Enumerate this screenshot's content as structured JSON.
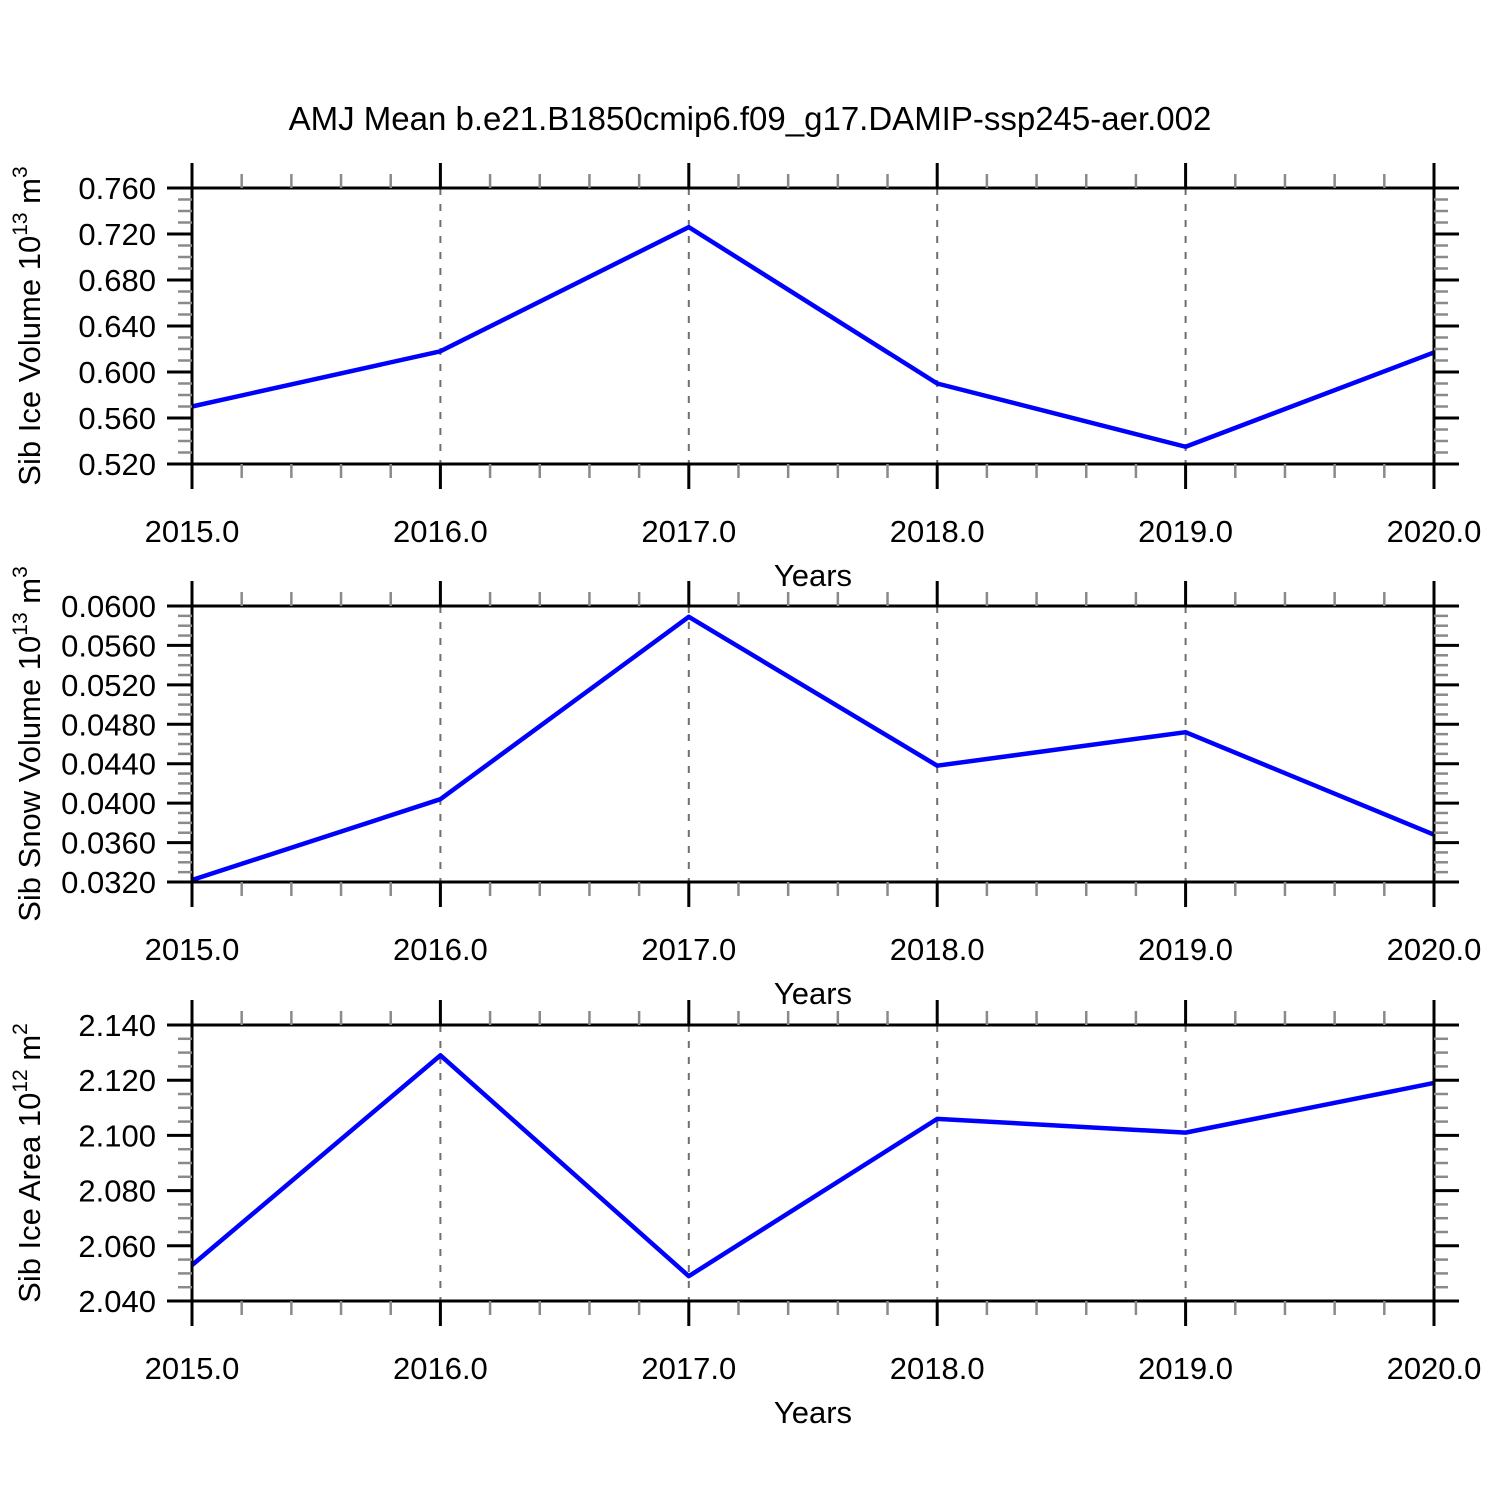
{
  "title": "AMJ Mean b.e21.B1850cmip6.f09_g17.DAMIP-ssp245-aer.002",
  "colors": {
    "line": "#0000ff",
    "frame": "#000000",
    "major_tick": "#000000",
    "minor_tick": "#8a8a8a",
    "grid": "#6f6f6f",
    "text": "#000000",
    "background": "#ffffff"
  },
  "chart_data": [
    {
      "type": "line",
      "name": "sib-ice-volume",
      "ylabel_parts": [
        {
          "text": "Sib Ice Volume 10",
          "sup": false
        },
        {
          "text": "13",
          "sup": true
        },
        {
          "text": " m",
          "sup": false
        },
        {
          "text": "3",
          "sup": true
        }
      ],
      "xlabel": "Years",
      "x": [
        2015,
        2016,
        2017,
        2018,
        2019,
        2020
      ],
      "values": [
        0.57,
        0.618,
        0.726,
        0.59,
        0.535,
        0.617
      ],
      "xlim": [
        2015,
        2020
      ],
      "xtick_labels": [
        "2015.0",
        "2016.0",
        "2017.0",
        "2018.0",
        "2019.0",
        "2020.0"
      ],
      "x_minor_step": 0.2,
      "ylim": [
        0.52,
        0.76
      ],
      "ytick_values": [
        0.52,
        0.56,
        0.6,
        0.64,
        0.68,
        0.72,
        0.76
      ],
      "ytick_labels": [
        "0.520",
        "0.560",
        "0.600",
        "0.640",
        "0.680",
        "0.720",
        "0.760"
      ],
      "y_minor_step": 0.01,
      "grid_x": [
        2016,
        2017,
        2018,
        2019
      ],
      "grid_on": true,
      "legend": "none"
    },
    {
      "type": "line",
      "name": "sib-snow-volume",
      "ylabel_parts": [
        {
          "text": "Sib Snow Volume 10",
          "sup": false
        },
        {
          "text": "13",
          "sup": true
        },
        {
          "text": " m",
          "sup": false
        },
        {
          "text": "3",
          "sup": true
        }
      ],
      "xlabel": "Years",
      "x": [
        2015,
        2016,
        2017,
        2018,
        2019,
        2020
      ],
      "values": [
        0.0322,
        0.0404,
        0.0589,
        0.0438,
        0.0472,
        0.0368
      ],
      "xlim": [
        2015,
        2020
      ],
      "xtick_labels": [
        "2015.0",
        "2016.0",
        "2017.0",
        "2018.0",
        "2019.0",
        "2020.0"
      ],
      "x_minor_step": 0.2,
      "ylim": [
        0.032,
        0.06
      ],
      "ytick_values": [
        0.032,
        0.036,
        0.04,
        0.044,
        0.048,
        0.052,
        0.056,
        0.06
      ],
      "ytick_labels": [
        "0.0320",
        "0.0360",
        "0.0400",
        "0.0440",
        "0.0480",
        "0.0520",
        "0.0560",
        "0.0600"
      ],
      "y_minor_step": 0.001,
      "grid_x": [
        2016,
        2017,
        2018,
        2019
      ],
      "grid_on": true,
      "legend": "none"
    },
    {
      "type": "line",
      "name": "sib-ice-area",
      "ylabel_parts": [
        {
          "text": "Sib Ice Area 10",
          "sup": false
        },
        {
          "text": "12",
          "sup": true
        },
        {
          "text": " m",
          "sup": false
        },
        {
          "text": "2",
          "sup": true
        }
      ],
      "xlabel": "Years",
      "x": [
        2015,
        2016,
        2017,
        2018,
        2019,
        2020
      ],
      "values": [
        2.053,
        2.129,
        2.049,
        2.106,
        2.101,
        2.119
      ],
      "xlim": [
        2015,
        2020
      ],
      "xtick_labels": [
        "2015.0",
        "2016.0",
        "2017.0",
        "2018.0",
        "2019.0",
        "2020.0"
      ],
      "x_minor_step": 0.2,
      "ylim": [
        2.04,
        2.14
      ],
      "ytick_values": [
        2.04,
        2.06,
        2.08,
        2.1,
        2.12,
        2.14
      ],
      "ytick_labels": [
        "2.040",
        "2.060",
        "2.080",
        "2.100",
        "2.120",
        "2.140"
      ],
      "y_minor_step": 0.005,
      "grid_x": [
        2016,
        2017,
        2018,
        2019
      ],
      "grid_on": true,
      "legend": "none"
    }
  ]
}
